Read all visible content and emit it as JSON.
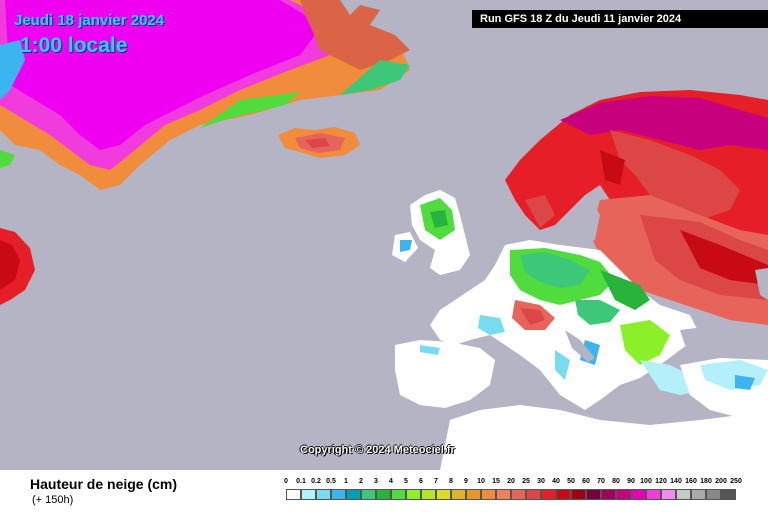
{
  "map": {
    "date": "Jeudi 18 janvier 2024",
    "local_time": "1:00 locale",
    "run": "Run GFS 18 Z du Jeudi 11 janvier 2024",
    "copyright": "Copyright © 2024 Meteociel.fr",
    "ocean_color": "#b4b4c4",
    "land_no_snow_color": "#ffffff"
  },
  "legend": {
    "title": "Hauteur de neige (cm)",
    "subtitle": "(+ 150h)",
    "levels": [
      "0",
      "0.1",
      "0.2",
      "0.5",
      "1",
      "2",
      "3",
      "4",
      "5",
      "6",
      "7",
      "8",
      "9",
      "10",
      "15",
      "20",
      "25",
      "30",
      "40",
      "50",
      "60",
      "70",
      "80",
      "90",
      "100",
      "120",
      "140",
      "160",
      "180",
      "200",
      "250"
    ],
    "colors": [
      "#ffffff",
      "#b4f0fa",
      "#78dcf0",
      "#3cb4f0",
      "#00a0b4",
      "#3cc878",
      "#28b43c",
      "#50dc3c",
      "#8cf028",
      "#b4e628",
      "#dcdc28",
      "#dcb428",
      "#e69628",
      "#f08c3c",
      "#f0825a",
      "#e6645a",
      "#dc4646",
      "#e61e28",
      "#c80a14",
      "#a00014",
      "#78003c",
      "#a0005a",
      "#c8007e",
      "#e600b4",
      "#f03cdc",
      "#f08cf0",
      "#c8c8c8",
      "#aaaaaa",
      "#888888",
      "#555555"
    ]
  }
}
